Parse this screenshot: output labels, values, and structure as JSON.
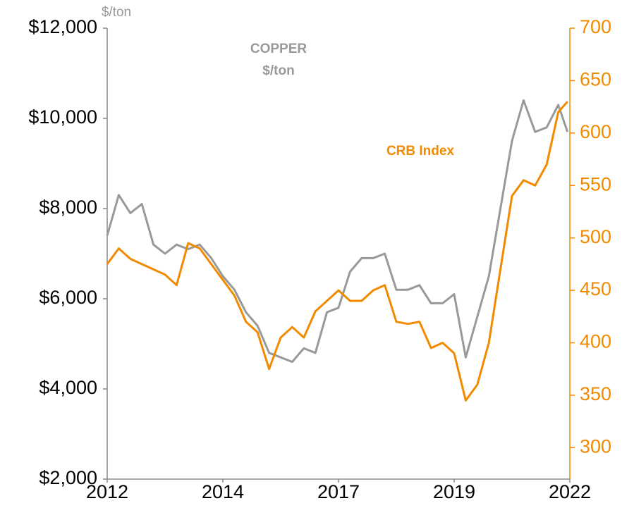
{
  "chart_data": {
    "type": "line",
    "y_label": "$/ton",
    "annotations": [
      {
        "text": "COPPER",
        "color": "#999999"
      },
      {
        "text": "$/ton",
        "color": "#999999"
      },
      {
        "text": "CRB Index",
        "color": "#f28a00"
      }
    ],
    "x": [
      2012,
      2012.25,
      2012.5,
      2012.75,
      2013,
      2013.25,
      2013.5,
      2013.75,
      2014,
      2014.25,
      2014.5,
      2014.75,
      2015,
      2015.25,
      2015.5,
      2015.75,
      2016,
      2016.25,
      2016.5,
      2016.75,
      2017,
      2017.25,
      2017.5,
      2017.75,
      2018,
      2018.25,
      2018.5,
      2018.75,
      2019,
      2019.25,
      2019.5,
      2019.75,
      2020,
      2020.25,
      2020.5,
      2020.75,
      2021,
      2021.25,
      2021.5,
      2021.75,
      2021.95
    ],
    "series": [
      {
        "name": "Copper",
        "color": "#999999",
        "axis": "y",
        "values": [
          7400,
          8300,
          7900,
          8100,
          7200,
          7000,
          7200,
          7100,
          7200,
          6900,
          6500,
          6200,
          5700,
          5400,
          4800,
          4700,
          4600,
          4900,
          4800,
          5700,
          5800,
          6600,
          6900,
          6900,
          7000,
          6200,
          6200,
          6300,
          5900,
          5900,
          6100,
          4700,
          5600,
          6500,
          8000,
          9500,
          10400,
          9700,
          9800,
          10300,
          9700
        ]
      },
      {
        "name": "CRB Index",
        "color": "#f28a00",
        "axis": "y2",
        "values": [
          475,
          490,
          480,
          475,
          470,
          465,
          455,
          495,
          490,
          475,
          460,
          445,
          420,
          410,
          375,
          405,
          415,
          405,
          430,
          440,
          450,
          440,
          440,
          450,
          455,
          420,
          418,
          420,
          395,
          400,
          390,
          345,
          360,
          400,
          470,
          540,
          555,
          550,
          570,
          620,
          630
        ]
      }
    ],
    "xlim": [
      2012,
      2022
    ],
    "xticks": [
      2012,
      {
        "value": 2014.5,
        "label": "2014"
      },
      2017,
      {
        "value": 2019.5,
        "label": "2019"
      },
      2022
    ],
    "ylim": [
      2000,
      12000
    ],
    "yticks": [
      {
        "value": 2000,
        "label": "$2,000"
      },
      {
        "value": 4000,
        "label": "$4,000"
      },
      {
        "value": 6000,
        "label": "$6,000"
      },
      {
        "value": 8000,
        "label": "$8,000"
      },
      {
        "value": 10000,
        "label": "$10,000"
      },
      {
        "value": 12000,
        "label": "$12,000"
      }
    ],
    "y2lim": [
      270,
      700
    ],
    "y2ticks": [
      300,
      350,
      400,
      450,
      500,
      550,
      600,
      650,
      700
    ],
    "grid": false
  }
}
